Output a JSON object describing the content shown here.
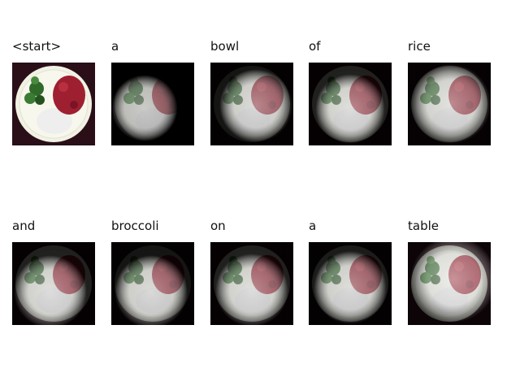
{
  "caption_words": [
    "<start>",
    "a",
    "bowl",
    "of",
    "rice",
    "and",
    "broccoli",
    "on",
    "a",
    "table"
  ],
  "colors": {
    "background": "#2a0f18",
    "plate": "#f2f2e4",
    "sauce": "#9e2030",
    "broccoli": "#2f6a2a",
    "rice": "#eeeeee"
  }
}
